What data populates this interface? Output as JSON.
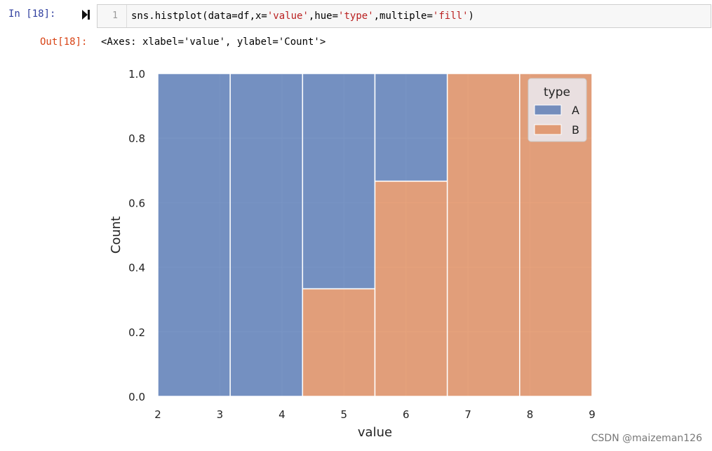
{
  "cell": {
    "in_prompt": "In  [18]:",
    "line_number": "1",
    "code": {
      "part1": "sns.histplot(data=df,x=",
      "str1": "'value'",
      "part2": ",hue=",
      "str2": "'type'",
      "part3": ",multiple=",
      "str3": "'fill'",
      "part4": ")"
    },
    "run_icon": "run-cursor-icon"
  },
  "output": {
    "prompt": "Out[18]:",
    "text": "<Axes: xlabel='value', ylabel='Count'>"
  },
  "chart_data": {
    "type": "bar",
    "stacking": "fill",
    "bin_edges": [
      2,
      3.1667,
      4.3333,
      5.5,
      6.6667,
      7.8333,
      9
    ],
    "series": [
      {
        "name": "A",
        "values": [
          1.0,
          1.0,
          0.6667,
          0.3333,
          0.0,
          0.0
        ],
        "color": "#4c72b0"
      },
      {
        "name": "B",
        "values": [
          0.0,
          0.0,
          0.3333,
          0.6667,
          1.0,
          1.0
        ],
        "color": "#dd8452"
      }
    ],
    "xlabel": "value",
    "ylabel": "Count",
    "xlim": [
      2,
      9
    ],
    "ylim": [
      0,
      1
    ],
    "xticks": [
      2,
      3,
      4,
      5,
      6,
      7,
      8,
      9
    ],
    "yticks": [
      "0.0",
      "0.2",
      "0.4",
      "0.6",
      "0.8",
      "1.0"
    ],
    "legend": {
      "title": "type",
      "entries": [
        "A",
        "B"
      ],
      "placement": "top-right"
    },
    "grid": true
  },
  "watermark": "CSDN @maizeman126"
}
